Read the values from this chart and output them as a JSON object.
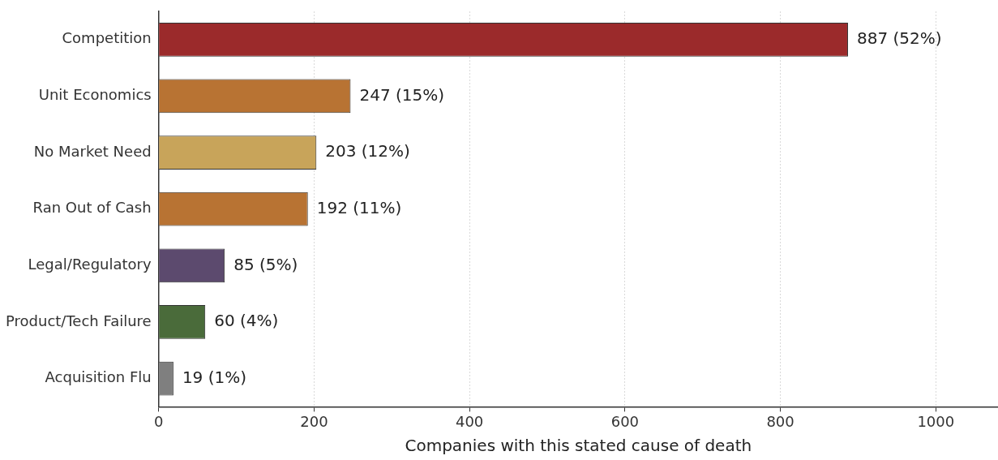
{
  "chart_data": {
    "type": "bar",
    "orientation": "horizontal",
    "xlabel": "Companies with this stated cause of death",
    "categories": [
      "Competition",
      "Unit Economics",
      "No Market Need",
      "Ran Out of Cash",
      "Legal/Regulatory",
      "Product/Tech Failure",
      "Acquisition Flu"
    ],
    "values": [
      887,
      247,
      203,
      192,
      85,
      60,
      19
    ],
    "colors": [
      "#9b2a2b",
      "#b87333",
      "#c8a45a",
      "#b87333",
      "#5c4a6e",
      "#4a6b3a",
      "#7f7f7f"
    ],
    "value_labels": [
      "887 (52%)",
      "247 (15%)",
      "203 (12%)",
      "192 (11%)",
      "85 (5%)",
      "60 (4%)",
      "19 (1%)"
    ],
    "xlim": [
      0,
      1080
    ],
    "xticks": [
      0,
      200,
      400,
      600,
      800,
      1000
    ],
    "grid": "x",
    "legend": false
  }
}
